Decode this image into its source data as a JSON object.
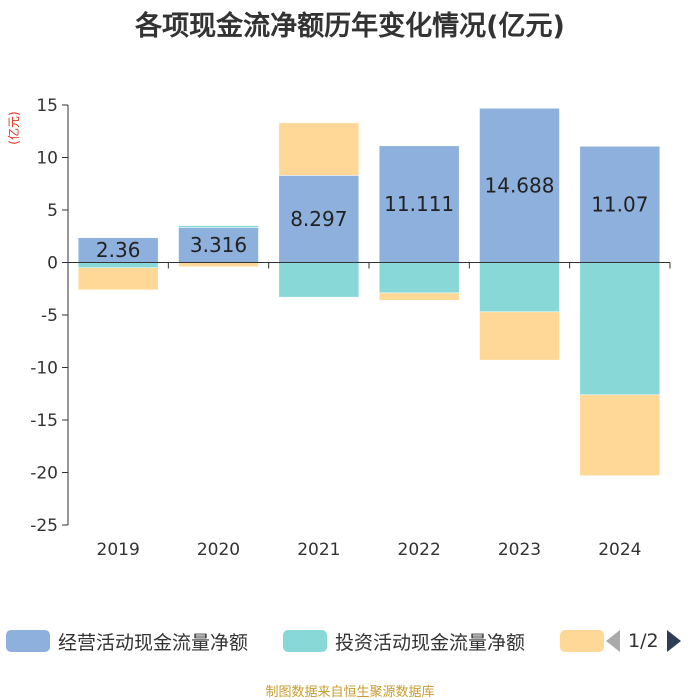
{
  "chart_data": {
    "type": "bar",
    "stacked": true,
    "title": "各项现金流净额历年变化情况(亿元)",
    "ylabel": "(亿元)",
    "xlabel": "",
    "categories": [
      "2019",
      "2020",
      "2021",
      "2022",
      "2023",
      "2024"
    ],
    "ylim": [
      -25,
      15
    ],
    "yticks": [
      15,
      10,
      5,
      0,
      -5,
      -10,
      -15,
      -20,
      -25
    ],
    "ytick_labels": [
      "15",
      "10",
      "5",
      "0",
      "-5",
      "-10",
      "-15",
      "-20",
      "-25"
    ],
    "series": [
      {
        "name": "经营活动现金流量净额",
        "color": "#8eb0dc",
        "values": [
          2.36,
          3.316,
          8.297,
          11.111,
          14.688,
          11.07
        ]
      },
      {
        "name": "投资活动现金流量净额",
        "color": "#88d8d8",
        "values": [
          -0.5,
          0.2,
          -3.3,
          -2.9,
          -4.7,
          -12.6
        ]
      },
      {
        "name": "",
        "color": "#ffd898",
        "values": [
          -2.1,
          -0.4,
          5.0,
          -0.7,
          -4.6,
          -7.7
        ]
      }
    ],
    "data_labels": [
      "2.36",
      "3.316",
      "8.297",
      "11.111",
      "14.688",
      "11.07"
    ],
    "legend_position": "bottom"
  },
  "legend": {
    "page_text": "1/2"
  },
  "source": "制图数据来自恒生聚源数据库"
}
